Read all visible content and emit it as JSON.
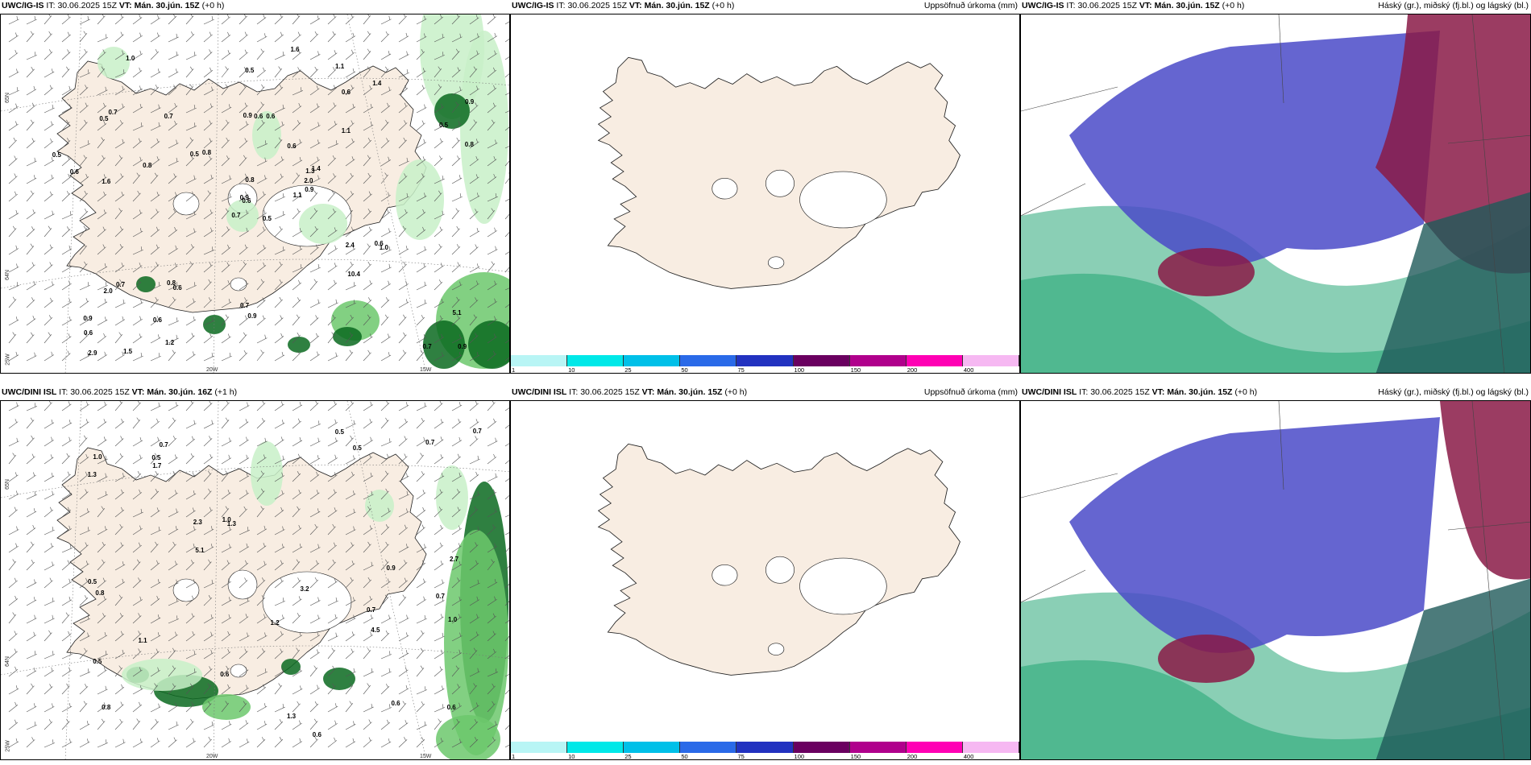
{
  "panels": [
    {
      "model": "UWC/IG-IS",
      "it_label": "IT:",
      "it": "30.06.2025 15Z",
      "vt_label": "VT:",
      "vt": "Mán. 30.jún. 15Z",
      "lead": "(+0 h)",
      "right": "",
      "labels": [
        "0.5",
        "0.5",
        "0.6",
        "0.9",
        "1.3",
        "0.6",
        "1.1",
        "0.6",
        "0.6",
        "1.1",
        "1.0",
        "0.9",
        "1.6",
        "0.9",
        "0.7",
        "1.1",
        "1.5",
        "0.9",
        "0.6",
        "0.7",
        "0.8",
        "0.6",
        "0.6",
        "0.6",
        "1.4",
        "1.0",
        "0.7",
        "0.5",
        "0.6",
        "2.4",
        "0.8",
        "0.9",
        "0.7",
        "0.8",
        "0.7",
        "1.4",
        "0.8",
        "0.7",
        "5.1",
        "0.6",
        "1.6",
        "0.5",
        "0.8",
        "10.4",
        "1.2",
        "0.5",
        "2.0",
        "2.9",
        "0.9",
        "0.9",
        "2.0",
        "0.5"
      ],
      "ticks": [
        "65N",
        "64N",
        "25W",
        "20W",
        "15W"
      ]
    },
    {
      "model": "UWC/IG-IS",
      "it_label": "IT:",
      "it": "30.06.2025 15Z",
      "vt_label": "VT:",
      "vt": "Mán. 30.jún. 15Z",
      "lead": "(+0 h)",
      "right": "Uppsöfnuð úrkoma (mm)"
    },
    {
      "model": "UWC/IG-IS",
      "it_label": "IT:",
      "it": "30.06.2025 15Z",
      "vt_label": "VT:",
      "vt": "Mán. 30.jún. 15Z",
      "lead": "(+0 h)",
      "right": "Háský (gr.), miðský (fj.bl.) og lágský (bl.)"
    },
    {
      "model": "UWC/DINI ISL",
      "it_label": "IT:",
      "it": "30.06.2025 15Z",
      "vt_label": "VT:",
      "vt": "Mán. 30.jún. 16Z",
      "lead": "(+1 h)",
      "right": "",
      "labels": [
        "0.7",
        "0.7",
        "0.8",
        "0.7",
        "1.3",
        "0.6",
        "0.5",
        "0.5",
        "2.3",
        "0.6",
        "1.3",
        "0.5",
        "1.0",
        "0.6",
        "0.6",
        "2.7",
        "1.2",
        "3.2",
        "1.0",
        "1.1",
        "0.7",
        "0.7",
        "5.1",
        "1.0",
        "0.5",
        "0.5",
        "4.5",
        "0.8",
        "1.7",
        "0.9",
        "1.3"
      ],
      "ticks": [
        "65N",
        "64N",
        "25W",
        "20W",
        "15W"
      ]
    },
    {
      "model": "UWC/DINI ISL",
      "it_label": "IT:",
      "it": "30.06.2025 15Z",
      "vt_label": "VT:",
      "vt": "Mán. 30.jún. 15Z",
      "lead": "(+0 h)",
      "right": "Uppsöfnuð úrkoma (mm)"
    },
    {
      "model": "UWC/DINI ISL",
      "it_label": "IT:",
      "it": "30.06.2025 15Z",
      "vt_label": "VT:",
      "vt": "Mán. 30.jún. 15Z",
      "lead": "(+0 h)",
      "right": "Háský (gr.), miðský (fj.bl.) og lágský (bl.)"
    }
  ],
  "colorbar": {
    "ticks": [
      "1",
      "10",
      "25",
      "50",
      "75",
      "100",
      "150",
      "200",
      "400"
    ],
    "colors": [
      "#b8f5f5",
      "#00e8e8",
      "#00c0e8",
      "#2a6ae8",
      "#2232c0",
      "#6a0060",
      "#b0008c",
      "#ff00b4",
      "#f6b8f2"
    ]
  },
  "colors": {
    "land": "#f8ede2",
    "sea": "#ffffff",
    "precip_light": "#c8f0c8",
    "precip_mid": "#6cc86c",
    "precip_dark": "#0a6a20",
    "cloud_high": "#8a1a46",
    "cloud_mid": "#4a4ac8",
    "cloud_low": "#2aa878"
  }
}
